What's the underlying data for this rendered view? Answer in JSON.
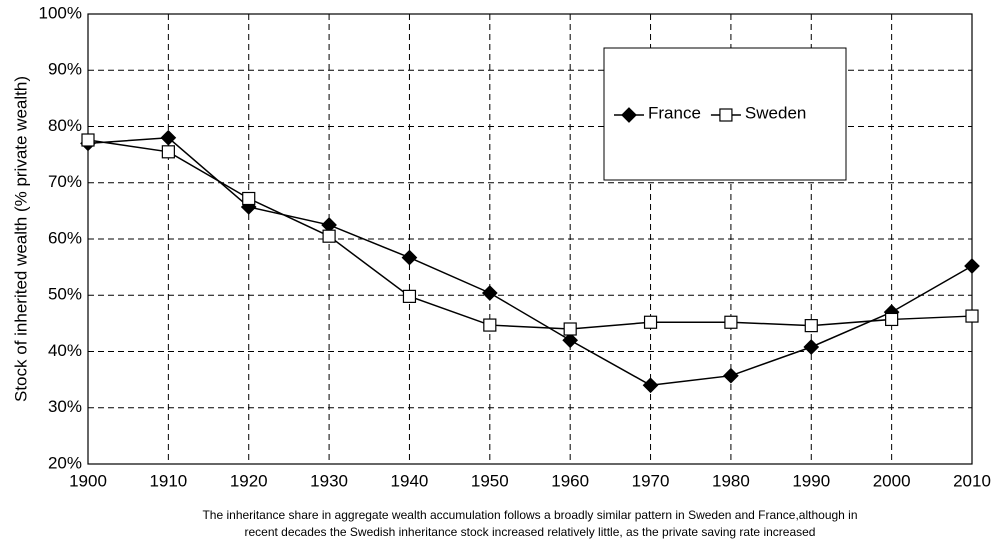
{
  "chart_data": {
    "type": "line",
    "y_label": "Stock of inherited wealth (% private wealth)",
    "caption": [
      "The inheritance share in aggregate wealth accumulation follows a broadly similar pattern in Sweden and France,although in",
      "recent decades the Swedish inheritance stock increased relatively little, as the private saving rate increased"
    ],
    "x": [
      1900,
      1910,
      1920,
      1930,
      1940,
      1950,
      1960,
      1970,
      1980,
      1990,
      2000,
      2010
    ],
    "xlim": [
      1900,
      2010
    ],
    "xticks": [
      1900,
      1910,
      1920,
      1930,
      1940,
      1950,
      1960,
      1970,
      1980,
      1990,
      2000,
      2010
    ],
    "ylim": [
      20,
      100
    ],
    "yticks": [
      {
        "value": 20,
        "label": "20%"
      },
      {
        "value": 30,
        "label": "30%"
      },
      {
        "value": 40,
        "label": "40%"
      },
      {
        "value": 50,
        "label": "50%"
      },
      {
        "value": 60,
        "label": "60%"
      },
      {
        "value": 70,
        "label": "70%"
      },
      {
        "value": 80,
        "label": "80%"
      },
      {
        "value": 90,
        "label": "90%"
      },
      {
        "value": 100,
        "label": "100%"
      }
    ],
    "grid": true,
    "series": [
      {
        "name": "France",
        "color": "#000000",
        "marker": "diamond",
        "values": [
          77,
          78,
          65.7,
          62.5,
          56.7,
          50.4,
          42,
          34,
          35.7,
          40.8,
          47,
          55.2
        ]
      },
      {
        "name": "Sweden",
        "color": "#000000",
        "marker": "square",
        "values": [
          77.6,
          75.5,
          67.2,
          60.5,
          49.8,
          44.7,
          44,
          45.2,
          45.2,
          44.6,
          45.7,
          46.3
        ]
      }
    ]
  }
}
